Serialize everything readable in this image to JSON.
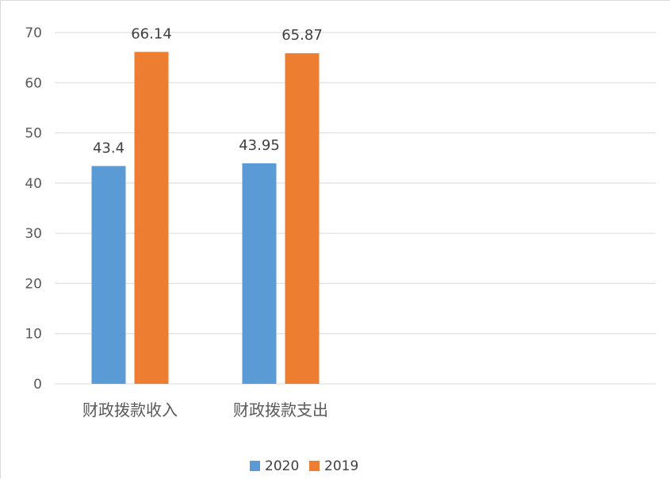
{
  "chart_data": {
    "type": "bar",
    "categories": [
      "财政拨款收入",
      "财政拨款支出"
    ],
    "series": [
      {
        "name": "2020",
        "values": [
          43.4,
          43.95
        ],
        "color": "#5b9bd5"
      },
      {
        "name": "2019",
        "values": [
          66.14,
          65.87
        ],
        "color": "#ed7d31"
      }
    ],
    "data_labels": [
      [
        "43.4",
        "43.95"
      ],
      [
        "66.14",
        "65.87"
      ]
    ],
    "title": "",
    "xlabel": "",
    "ylabel": "",
    "ylim": [
      0,
      70
    ],
    "yticks": [
      "0",
      "10",
      "20",
      "30",
      "40",
      "50",
      "60",
      "70"
    ],
    "grid": true,
    "legend_position": "bottom"
  }
}
